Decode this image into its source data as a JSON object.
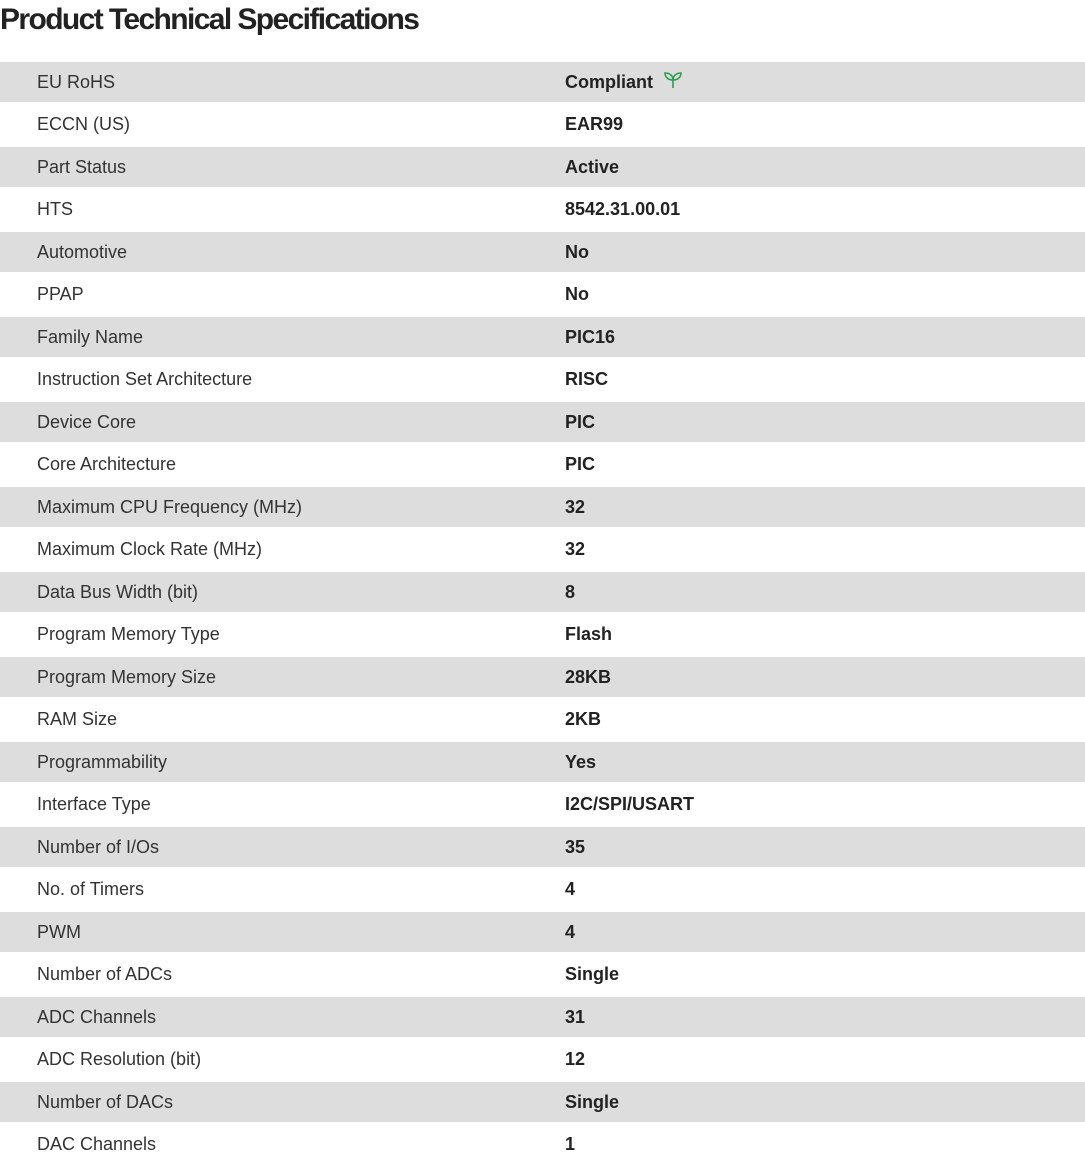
{
  "title": "Product Technical Specifications",
  "colors": {
    "row_alt": "#dddddd",
    "compliant_icon": "#2e9e4f"
  },
  "specs": [
    {
      "label": "EU RoHS",
      "value": "Compliant",
      "icon": "leaf-icon"
    },
    {
      "label": "ECCN (US)",
      "value": "EAR99"
    },
    {
      "label": "Part Status",
      "value": "Active"
    },
    {
      "label": "HTS",
      "value": "8542.31.00.01"
    },
    {
      "label": "Automotive",
      "value": "No"
    },
    {
      "label": "PPAP",
      "value": "No"
    },
    {
      "label": "Family Name",
      "value": "PIC16"
    },
    {
      "label": "Instruction Set Architecture",
      "value": "RISC"
    },
    {
      "label": "Device Core",
      "value": "PIC"
    },
    {
      "label": "Core Architecture",
      "value": "PIC"
    },
    {
      "label": "Maximum CPU Frequency (MHz)",
      "value": "32"
    },
    {
      "label": "Maximum Clock Rate (MHz)",
      "value": "32"
    },
    {
      "label": "Data Bus Width (bit)",
      "value": "8"
    },
    {
      "label": "Program Memory Type",
      "value": "Flash"
    },
    {
      "label": "Program Memory Size",
      "value": "28KB"
    },
    {
      "label": "RAM Size",
      "value": "2KB"
    },
    {
      "label": "Programmability",
      "value": "Yes"
    },
    {
      "label": "Interface Type",
      "value": "I2C/SPI/USART"
    },
    {
      "label": "Number of I/Os",
      "value": "35"
    },
    {
      "label": "No. of Timers",
      "value": "4"
    },
    {
      "label": "PWM",
      "value": "4"
    },
    {
      "label": "Number of ADCs",
      "value": "Single"
    },
    {
      "label": "ADC Channels",
      "value": "31"
    },
    {
      "label": "ADC Resolution (bit)",
      "value": "12"
    },
    {
      "label": "Number of DACs",
      "value": "Single"
    },
    {
      "label": "DAC Channels",
      "value": "1"
    }
  ]
}
